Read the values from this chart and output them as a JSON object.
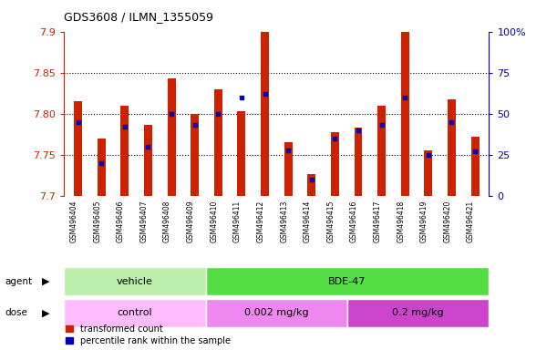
{
  "title": "GDS3608 / ILMN_1355059",
  "samples": [
    "GSM496404",
    "GSM496405",
    "GSM496406",
    "GSM496407",
    "GSM496408",
    "GSM496409",
    "GSM496410",
    "GSM496411",
    "GSM496412",
    "GSM496413",
    "GSM496414",
    "GSM496415",
    "GSM496416",
    "GSM496417",
    "GSM496418",
    "GSM496419",
    "GSM496420",
    "GSM496421"
  ],
  "transformed_count": [
    7.815,
    7.77,
    7.81,
    7.787,
    7.843,
    7.8,
    7.83,
    7.803,
    7.9,
    7.765,
    7.727,
    7.778,
    7.783,
    7.81,
    7.9,
    7.755,
    7.818,
    7.772
  ],
  "percentile_rank": [
    45,
    20,
    42,
    30,
    50,
    43,
    50,
    60,
    62,
    28,
    10,
    35,
    40,
    43,
    60,
    25,
    45,
    27
  ],
  "ymin": 7.7,
  "ymax": 7.9,
  "yticks": [
    7.7,
    7.75,
    7.8,
    7.85,
    7.9
  ],
  "ytick_labels_left": [
    "7.7",
    "7.75",
    "7.80",
    "7.85",
    "7.9"
  ],
  "right_axis_ticks": [
    0,
    25,
    50,
    75,
    100
  ],
  "right_axis_labels": [
    "0",
    "25",
    "50",
    "75",
    "100%"
  ],
  "bar_color": "#cc2200",
  "blue_color": "#0000bb",
  "agent_groups": [
    {
      "label": "vehicle",
      "start": 0,
      "end": 6,
      "color": "#bbeeaa"
    },
    {
      "label": "BDE-47",
      "start": 6,
      "end": 18,
      "color": "#55dd44"
    }
  ],
  "dose_groups": [
    {
      "label": "control",
      "start": 0,
      "end": 6,
      "color": "#ffbbff"
    },
    {
      "label": "0.002 mg/kg",
      "start": 6,
      "end": 12,
      "color": "#ee88ee"
    },
    {
      "label": "0.2 mg/kg",
      "start": 12,
      "end": 18,
      "color": "#cc44cc"
    }
  ],
  "base_value": 7.7,
  "bar_width": 0.35,
  "grid_lines": [
    7.75,
    7.8,
    7.85
  ],
  "xlabel_bg": "#cccccc",
  "plot_bg": "#ffffff",
  "fig_bg": "#ffffff"
}
